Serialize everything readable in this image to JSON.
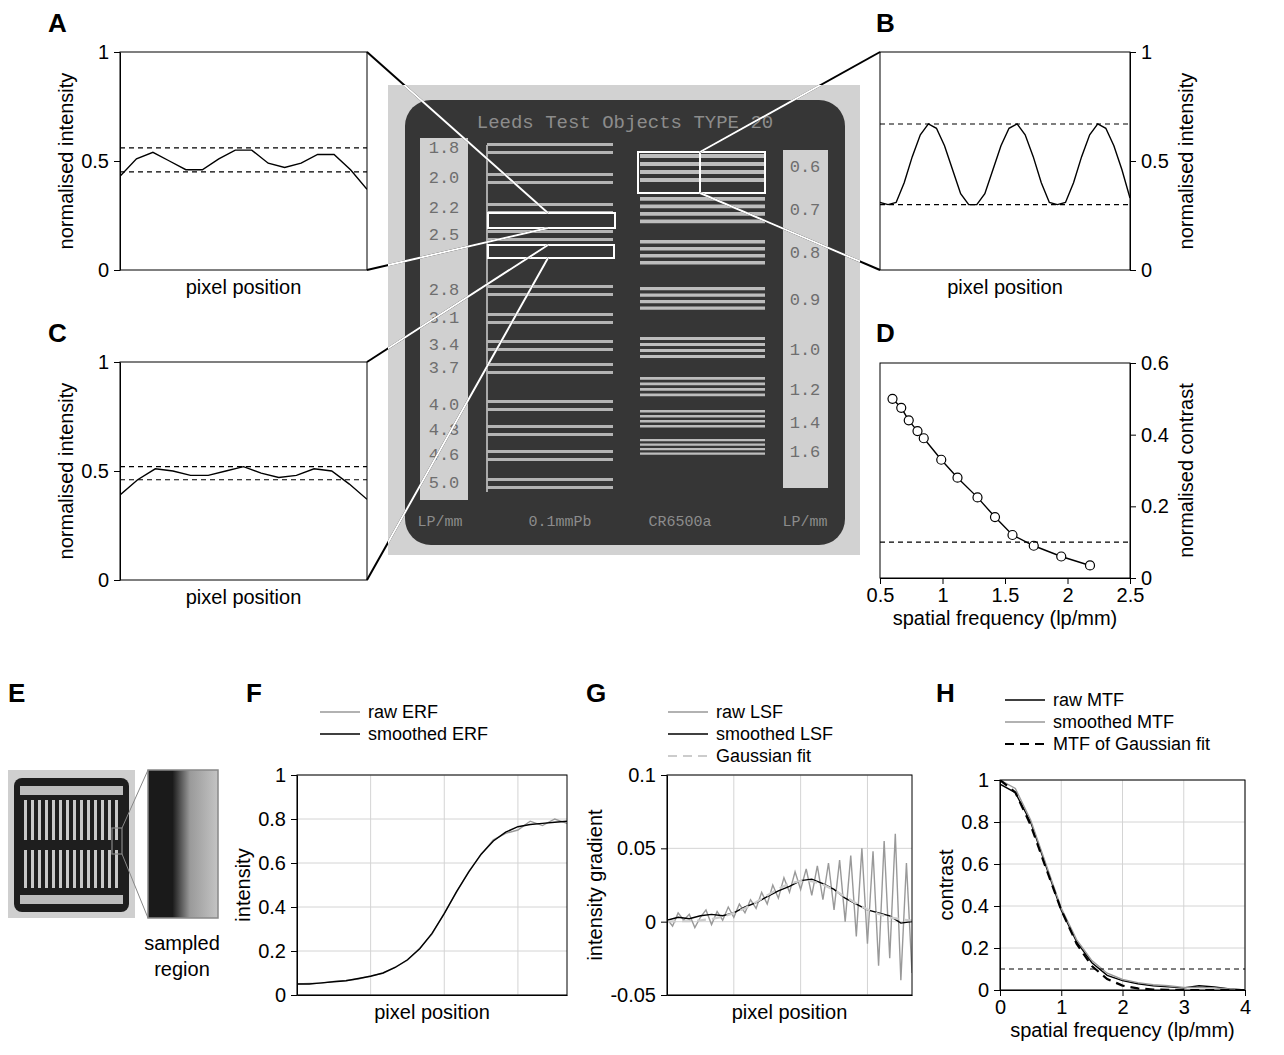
{
  "chart_data": [
    {
      "panel": "A",
      "type": "line",
      "xlabel": "pixel position",
      "ylabel": "normalised intensity",
      "xlim": [
        1,
        16
      ],
      "ylim": [
        0,
        1
      ],
      "yticks": [
        0,
        0.5,
        1
      ],
      "tick_labels": "y",
      "series": [
        {
          "x": [
            1,
            2,
            3,
            4,
            5,
            6,
            7,
            8,
            9,
            10,
            11,
            12,
            13,
            14,
            15,
            16
          ],
          "values": [
            0.43,
            0.51,
            0.54,
            0.5,
            0.46,
            0.46,
            0.51,
            0.55,
            0.55,
            0.49,
            0.47,
            0.49,
            0.53,
            0.53,
            0.46,
            0.37
          ],
          "color": "#000000",
          "line_style": "solid"
        },
        {
          "x": [
            1,
            16
          ],
          "values": [
            0.56,
            0.56
          ],
          "color": "#000000",
          "line_style": "dashed"
        },
        {
          "x": [
            1,
            16
          ],
          "values": [
            0.45,
            0.45
          ],
          "color": "#000000",
          "line_style": "dashed"
        }
      ]
    },
    {
      "panel": "B",
      "type": "line",
      "xlabel": "pixel position",
      "y2label": "normalised intensity",
      "xlim": [
        0,
        62
      ],
      "y2lim": [
        0,
        1
      ],
      "y2ticks": [
        0,
        0.5,
        1
      ],
      "tick_labels": "y",
      "series": [
        {
          "x": [
            0,
            2,
            4,
            6,
            8,
            10,
            12,
            14,
            16,
            18,
            20,
            22,
            24,
            26,
            28,
            30,
            32,
            34,
            36,
            38,
            40,
            42,
            44,
            46,
            48,
            50,
            52,
            54,
            56,
            58,
            60,
            62
          ],
          "values": [
            0.31,
            0.3,
            0.31,
            0.4,
            0.52,
            0.62,
            0.67,
            0.65,
            0.57,
            0.46,
            0.35,
            0.3,
            0.3,
            0.35,
            0.46,
            0.57,
            0.65,
            0.67,
            0.62,
            0.52,
            0.4,
            0.31,
            0.3,
            0.31,
            0.4,
            0.52,
            0.62,
            0.67,
            0.65,
            0.57,
            0.46,
            0.33
          ],
          "color": "#000000",
          "line_style": "solid",
          "axis": "y2"
        },
        {
          "x": [
            0,
            62
          ],
          "values": [
            0.67,
            0.67
          ],
          "color": "#000000",
          "line_style": "dashed",
          "axis": "y2"
        },
        {
          "x": [
            0,
            62
          ],
          "values": [
            0.3,
            0.3
          ],
          "color": "#000000",
          "line_style": "dashed",
          "axis": "y2"
        }
      ]
    },
    {
      "panel": "C",
      "type": "line",
      "xlabel": "pixel position",
      "ylabel": "normalised intensity",
      "xlim": [
        1,
        15
      ],
      "ylim": [
        0,
        1
      ],
      "yticks": [
        0,
        0.5,
        1
      ],
      "tick_labels": "y",
      "series": [
        {
          "x": [
            1,
            2,
            3,
            4,
            5,
            6,
            7,
            8,
            9,
            10,
            11,
            12,
            13,
            14,
            15
          ],
          "values": [
            0.39,
            0.46,
            0.51,
            0.5,
            0.48,
            0.48,
            0.5,
            0.52,
            0.49,
            0.47,
            0.48,
            0.51,
            0.5,
            0.44,
            0.37
          ],
          "color": "#000000",
          "line_style": "solid"
        },
        {
          "x": [
            1,
            15
          ],
          "values": [
            0.52,
            0.52
          ],
          "color": "#000000",
          "line_style": "dashed"
        },
        {
          "x": [
            1,
            15
          ],
          "values": [
            0.46,
            0.46
          ],
          "color": "#000000",
          "line_style": "dashed"
        }
      ]
    },
    {
      "panel": "D",
      "type": "line",
      "xlabel": "spatial frequency (lp/mm)",
      "y2label": "normalised contrast",
      "xlim": [
        0.5,
        2.5
      ],
      "xticks": [
        0.5,
        1,
        1.5,
        2,
        2.5
      ],
      "y2lim": [
        0,
        0.6
      ],
      "y2ticks": [
        0,
        0.2,
        0.4,
        0.6
      ],
      "series": [
        {
          "x": [
            0.6,
            0.67,
            0.73,
            0.8,
            0.85,
            0.99,
            1.12,
            1.28,
            1.42,
            1.56,
            1.73,
            1.95,
            2.18
          ],
          "values": [
            0.5,
            0.475,
            0.44,
            0.41,
            0.39,
            0.33,
            0.28,
            0.225,
            0.17,
            0.12,
            0.09,
            0.06,
            0.035
          ],
          "color": "#000000",
          "line_style": "solid",
          "marker": "circle",
          "axis": "y2"
        },
        {
          "x": [
            0.5,
            2.5
          ],
          "values": [
            0.1,
            0.1
          ],
          "color": "#000000",
          "line_style": "dashed",
          "axis": "y2"
        }
      ]
    },
    {
      "type": "image",
      "header": "Leeds Test Objects TYPE 20",
      "left_labels": [
        "1.8",
        "2.0",
        "2.2",
        "2.5",
        "2.8",
        "3.1",
        "3.4",
        "3.7",
        "4.0",
        "4.3",
        "4.6",
        "5.0"
      ],
      "right_labels": [
        "0.6",
        "0.7",
        "0.8",
        "0.9",
        "1.0",
        "1.2",
        "1.4",
        "1.6"
      ],
      "footer": [
        "LP/mm",
        "0.1mmPb",
        "CR6500a",
        "LP/mm"
      ]
    },
    {
      "panel": "E",
      "type": "image",
      "caption": "sampled region"
    },
    {
      "panel": "F",
      "type": "line",
      "xlabel": "pixel position",
      "ylabel": "intensity",
      "xlim": [
        0,
        110
      ],
      "xticks": [
        0,
        30,
        60,
        90
      ],
      "ylim": [
        0,
        1
      ],
      "yticks": [
        0,
        0.2,
        0.4,
        0.6,
        0.8,
        1
      ],
      "tick_labels": "y",
      "grid": true,
      "legend": "top",
      "series": [
        {
          "name": "raw ERF",
          "x": [
            0,
            5,
            10,
            15,
            20,
            25,
            30,
            35,
            40,
            45,
            50,
            55,
            60,
            65,
            70,
            75,
            80,
            85,
            90,
            95,
            100,
            105,
            110
          ],
          "values": [
            0.05,
            0.052,
            0.054,
            0.062,
            0.066,
            0.073,
            0.087,
            0.098,
            0.127,
            0.158,
            0.212,
            0.277,
            0.372,
            0.468,
            0.562,
            0.638,
            0.705,
            0.735,
            0.75,
            0.79,
            0.77,
            0.8,
            0.78
          ],
          "color": "#999999",
          "line_style": "solid"
        },
        {
          "name": "smoothed ERF",
          "x": [
            0,
            5,
            10,
            15,
            20,
            25,
            30,
            35,
            40,
            45,
            50,
            55,
            60,
            65,
            70,
            75,
            80,
            85,
            90,
            95,
            100,
            105,
            110
          ],
          "values": [
            0.05,
            0.05,
            0.055,
            0.06,
            0.065,
            0.075,
            0.085,
            0.1,
            0.125,
            0.16,
            0.21,
            0.28,
            0.37,
            0.47,
            0.56,
            0.64,
            0.7,
            0.74,
            0.765,
            0.775,
            0.78,
            0.785,
            0.79
          ],
          "color": "#000000",
          "line_style": "solid"
        }
      ]
    },
    {
      "panel": "G",
      "type": "line",
      "xlabel": "pixel position",
      "ylabel": "intensity gradient",
      "xlim": [
        0,
        110
      ],
      "xticks": [
        0,
        30,
        60,
        90
      ],
      "ylim": [
        -0.05,
        0.1
      ],
      "yticks": [
        -0.05,
        0,
        0.05,
        0.1
      ],
      "tick_labels": "y",
      "grid": true,
      "legend": "top",
      "series": [
        {
          "name": "raw LSF",
          "x": [
            0,
            2.5,
            5,
            7.5,
            10,
            12.5,
            15,
            17.5,
            20,
            22.5,
            25,
            27.5,
            30,
            32.5,
            35,
            37.5,
            40,
            42.5,
            45,
            47.5,
            50,
            52.5,
            55,
            57.5,
            60,
            62.5,
            65,
            67.5,
            70,
            72.5,
            75,
            77.5,
            80,
            82.5,
            85,
            87.5,
            90,
            92.5,
            95,
            97.5,
            100,
            102.5,
            105,
            107.5,
            110
          ],
          "values": [
            0.002,
            -0.003,
            0.006,
            0.001,
            0.005,
            -0.004,
            0.003,
            0.008,
            -0.002,
            0.007,
            0.001,
            0.01,
            0.003,
            0.012,
            0.006,
            0.015,
            0.009,
            0.02,
            0.012,
            0.025,
            0.016,
            0.03,
            0.02,
            0.034,
            0.022,
            0.036,
            0.018,
            0.038,
            0.015,
            0.04,
            0.008,
            0.042,
            0.0,
            0.045,
            -0.01,
            0.05,
            -0.015,
            0.048,
            -0.03,
            0.055,
            -0.025,
            0.06,
            -0.04,
            0.04,
            -0.035
          ],
          "color": "#999999",
          "line_style": "solid"
        },
        {
          "name": "smoothed LSF",
          "x": [
            0,
            5,
            10,
            15,
            20,
            25,
            30,
            35,
            40,
            45,
            50,
            55,
            60,
            65,
            70,
            75,
            80,
            85,
            90,
            95,
            100,
            105,
            110
          ],
          "values": [
            0.001,
            0.003,
            0.002,
            0.004,
            0.005,
            0.004,
            0.006,
            0.01,
            0.013,
            0.017,
            0.021,
            0.024,
            0.028,
            0.029,
            0.026,
            0.022,
            0.016,
            0.012,
            0.008,
            0.006,
            0.004,
            -0.001,
            0.0
          ],
          "color": "#000000",
          "line_style": "solid"
        },
        {
          "name": "Gaussian fit",
          "x": [
            0,
            5,
            10,
            15,
            20,
            25,
            30,
            35,
            40,
            45,
            50,
            55,
            60,
            65,
            70,
            75,
            80,
            85,
            90,
            95,
            100,
            105,
            110
          ],
          "values": [
            0.0001,
            0.0002,
            0.0004,
            0.0009,
            0.0018,
            0.0034,
            0.0058,
            0.0091,
            0.0133,
            0.0179,
            0.0224,
            0.026,
            0.0278,
            0.0276,
            0.0254,
            0.0216,
            0.017,
            0.0124,
            0.0083,
            0.0052,
            0.003,
            0.0016,
            0.0008
          ],
          "color": "#cccccc",
          "line_style": "dashed"
        }
      ]
    },
    {
      "panel": "H",
      "type": "line",
      "xlabel": "spatial frequency (lp/mm)",
      "ylabel": "contrast",
      "xlim": [
        0,
        4
      ],
      "xticks": [
        0,
        1,
        2,
        3,
        4
      ],
      "ylim": [
        0,
        1
      ],
      "yticks": [
        0,
        0.2,
        0.4,
        0.6,
        0.8,
        1
      ],
      "grid": true,
      "legend": "top",
      "series": [
        {
          "name": "raw MTF",
          "x": [
            0,
            0.25,
            0.5,
            0.75,
            1,
            1.25,
            1.5,
            1.75,
            2,
            2.25,
            2.5,
            2.75,
            3,
            3.25,
            3.5,
            3.75,
            4
          ],
          "values": [
            0.98,
            0.94,
            0.8,
            0.59,
            0.38,
            0.23,
            0.13,
            0.07,
            0.045,
            0.03,
            0.02,
            0.015,
            0.01,
            0.02,
            0.015,
            0.005,
            0
          ],
          "color": "#000000",
          "line_style": "solid"
        },
        {
          "name": "smoothed MTF",
          "x": [
            0,
            0.25,
            0.5,
            0.75,
            1,
            1.25,
            1.5,
            1.75,
            2,
            2.25,
            2.5,
            2.75,
            3,
            3.25,
            3.5,
            3.75,
            4
          ],
          "values": [
            1.0,
            0.96,
            0.81,
            0.6,
            0.39,
            0.24,
            0.14,
            0.08,
            0.05,
            0.035,
            0.025,
            0.02,
            0.012,
            0.012,
            0.01,
            0.005,
            0
          ],
          "color": "#999999",
          "line_style": "solid"
        },
        {
          "name": "MTF of Gaussian fit",
          "x": [
            0,
            0.25,
            0.5,
            0.75,
            1,
            1.25,
            1.5,
            1.75,
            2,
            2.25,
            2.5,
            2.75,
            3,
            3.25,
            3.5,
            3.75,
            4
          ],
          "values": [
            1,
            0.941,
            0.786,
            0.581,
            0.381,
            0.221,
            0.114,
            0.052,
            0.021,
            0.0075,
            0.0024,
            0.0007,
            0.0002,
            0,
            0,
            0,
            0
          ],
          "color": "#000000",
          "line_style": "dashed"
        },
        {
          "x": [
            0,
            4
          ],
          "values": [
            0.1,
            0.1
          ],
          "color": "#000000",
          "line_style": "dashed"
        }
      ]
    }
  ]
}
